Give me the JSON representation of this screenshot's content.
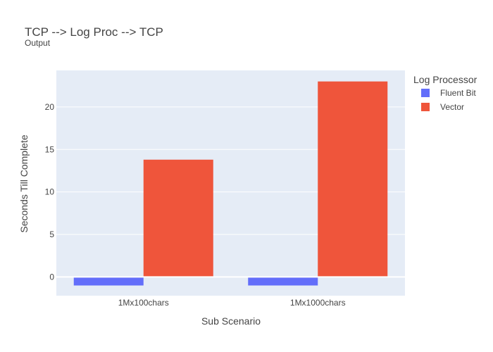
{
  "chart_data": {
    "type": "bar",
    "title": "TCP --> Log Proc --> TCP",
    "subtitle": "Output",
    "xlabel": "Sub Scenario",
    "ylabel": "Seconds Till Complete",
    "categories": [
      "1Mx100chars",
      "1Mx1000chars"
    ],
    "series": [
      {
        "name": "Fluent Bit",
        "values": [
          -1,
          -1
        ],
        "color": "#636efa"
      },
      {
        "name": "Vector",
        "values": [
          13.8,
          23.0
        ],
        "color": "#ef553b"
      }
    ],
    "ylim": [
      -2.2,
      24.3
    ],
    "yticks": [
      0,
      5,
      10,
      15,
      20
    ],
    "grid": true,
    "legend": {
      "title": "Log Processor",
      "placement": "right"
    },
    "colors": {
      "plot_background": "#e5ecf6",
      "gridline": "#ffffff"
    }
  }
}
